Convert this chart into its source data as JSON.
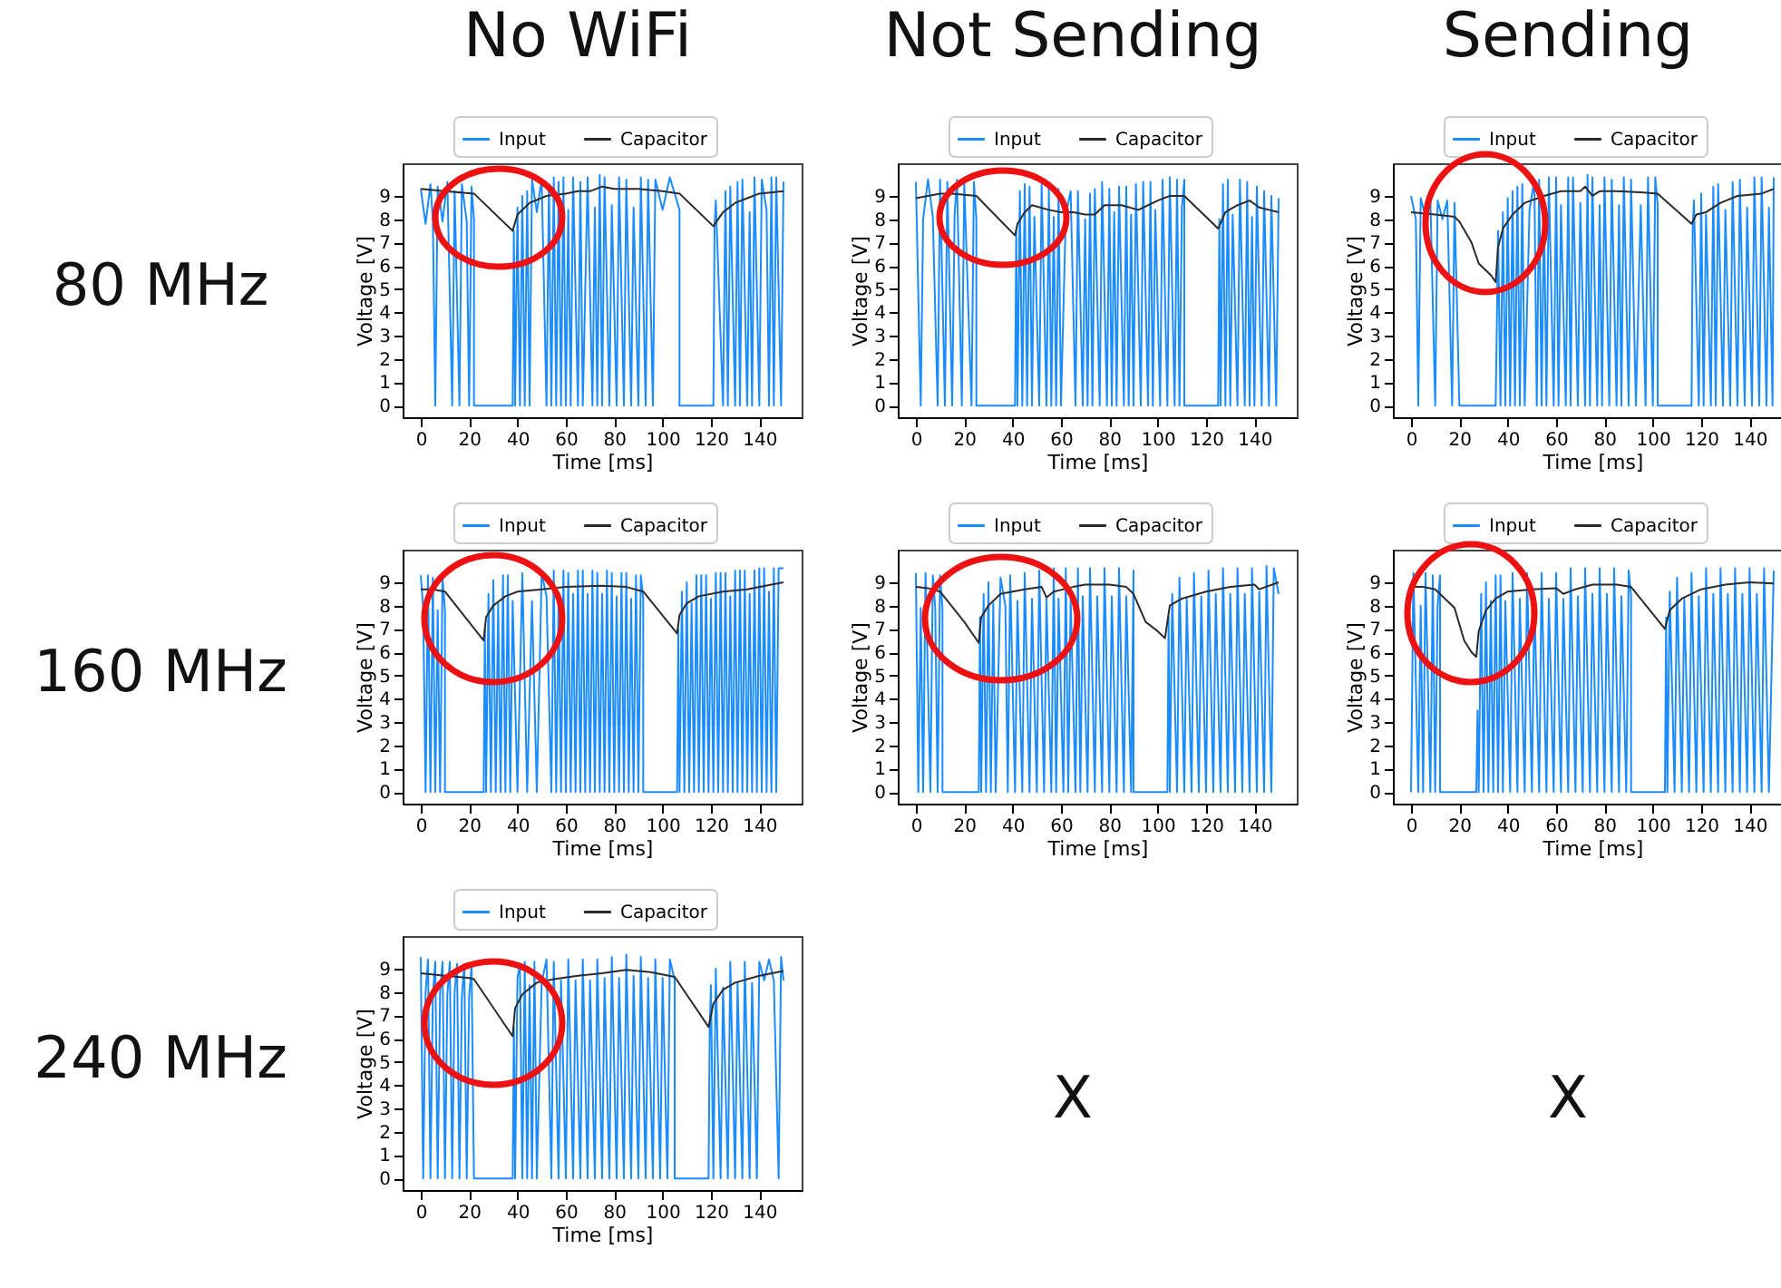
{
  "chart_data": [
    {
      "type": "line",
      "title": "No WiFi",
      "annotations": [
        "80 MHz"
      ],
      "xlabel": "Time [ms]",
      "ylabel": "Voltage [V]",
      "xlim": [
        -7.5,
        157.5
      ],
      "ylim": [
        -0.5,
        10.4
      ],
      "xticks": [
        0,
        20,
        40,
        60,
        80,
        100,
        120,
        140
      ],
      "yticks": [
        0,
        1,
        2,
        3,
        4,
        5,
        6,
        7,
        8,
        9
      ],
      "legend": "top",
      "series": [
        {
          "name": "Input",
          "color": "#1a8cff",
          "x": [
            0,
            2,
            4,
            5,
            6,
            7,
            9,
            11,
            13,
            14,
            16,
            17,
            19,
            20,
            21,
            22,
            22,
            38,
            38.5,
            39,
            40,
            41,
            42,
            43,
            44,
            45,
            46,
            48,
            50,
            52,
            53,
            54,
            55,
            56,
            57,
            58,
            59,
            60,
            61,
            62,
            63,
            65,
            66,
            67,
            69,
            71,
            72,
            73,
            74,
            75,
            76,
            78,
            79,
            81,
            82,
            84,
            85,
            87,
            88,
            90,
            91,
            93,
            94,
            96,
            97,
            100,
            103,
            107,
            107,
            121,
            121.5,
            122,
            125,
            126,
            127,
            128,
            130,
            131,
            132,
            133,
            135,
            136,
            137,
            138,
            140,
            141,
            143,
            144,
            145,
            146,
            147,
            149,
            150
          ],
          "values": [
            9.3,
            7.8,
            9.5,
            8,
            0,
            9.4,
            7.9,
            9.6,
            0,
            9.2,
            0,
            9.5,
            7.9,
            0,
            9.4,
            8,
            0,
            0,
            7.5,
            0,
            8.5,
            0,
            9,
            0,
            9.2,
            0,
            9.7,
            8.3,
            9.7,
            0,
            9.5,
            0,
            9.8,
            0,
            9.6,
            0,
            9.8,
            0,
            8.4,
            0,
            9.8,
            0,
            9.6,
            0,
            9.8,
            0,
            8.5,
            0,
            9.9,
            0,
            9.8,
            0,
            8.6,
            0,
            9.8,
            0,
            9.7,
            0,
            8.5,
            0,
            9.8,
            0,
            9.7,
            0,
            9.7,
            8.4,
            9.8,
            8.4,
            0,
            0,
            7.7,
            8.8,
            0,
            9.2,
            0,
            9.4,
            0,
            9.6,
            0,
            9.7,
            0,
            8.3,
            0,
            9.8,
            0,
            9.7,
            8.4,
            0,
            9.8,
            0,
            9.8,
            0,
            9.6
          ]
        },
        {
          "name": "Capacitor",
          "color": "#2b2b2b",
          "x": [
            0,
            10,
            22,
            38,
            40,
            45,
            52,
            60,
            65,
            70,
            75,
            80,
            90,
            100,
            107,
            121,
            125,
            130,
            135,
            140,
            150
          ],
          "values": [
            9.3,
            9.2,
            9.1,
            7.5,
            8.2,
            8.7,
            9,
            9.1,
            9.2,
            9.2,
            9.4,
            9.3,
            9.3,
            9.2,
            9.1,
            7.7,
            8.3,
            8.7,
            8.9,
            9.1,
            9.2
          ]
        }
      ]
    },
    {
      "type": "line",
      "title": "Not Sending",
      "xlabel": "Time [ms]",
      "ylabel": "Voltage [V]",
      "xlim": [
        -7.5,
        157.5
      ],
      "ylim": [
        -0.5,
        10.4
      ],
      "xticks": [
        0,
        20,
        40,
        60,
        80,
        100,
        120,
        140
      ],
      "yticks": [
        0,
        1,
        2,
        3,
        4,
        5,
        6,
        7,
        8,
        9
      ],
      "legend": "top",
      "series": [
        {
          "name": "Input",
          "color": "#1a8cff",
          "x": [
            0,
            2,
            3,
            5,
            7,
            9,
            10,
            12,
            13,
            15,
            16,
            17,
            19,
            20,
            23,
            24,
            25,
            25,
            41,
            41.5,
            42,
            43,
            44,
            45,
            46,
            47,
            48,
            49,
            51,
            52,
            54,
            55,
            56,
            57,
            58,
            59,
            60,
            62,
            64,
            66,
            67,
            69,
            70,
            71,
            72,
            73,
            74,
            76,
            77,
            79,
            80,
            81,
            82,
            83,
            84,
            86,
            87,
            88,
            89,
            90,
            91,
            93,
            94,
            96,
            97,
            98,
            99,
            101,
            102,
            104,
            105,
            107,
            108,
            109,
            110,
            111,
            111,
            125,
            125.5,
            126,
            127,
            128,
            129,
            130,
            131,
            133,
            134,
            136,
            137,
            138,
            139,
            140,
            141,
            143,
            144,
            146,
            147,
            149,
            150
          ],
          "values": [
            9.6,
            0,
            8,
            9.7,
            8.1,
            0,
            9.7,
            0,
            9.6,
            0,
            8.2,
            9.7,
            0,
            9.6,
            0,
            9.6,
            8,
            0,
            0,
            7.5,
            0,
            9.2,
            0,
            9.5,
            0,
            9.4,
            0,
            8.1,
            0,
            9.5,
            0,
            9.3,
            0,
            8.1,
            0,
            9.3,
            0,
            8.2,
            9.2,
            0,
            9.2,
            0,
            8,
            0,
            9.1,
            0,
            9.3,
            0,
            9.6,
            0,
            9.3,
            0,
            8.3,
            0,
            9.4,
            0,
            9.4,
            0,
            8.2,
            0,
            9.5,
            0,
            9.6,
            0,
            9.6,
            0,
            8.4,
            0,
            9.7,
            0,
            9.8,
            0,
            9.7,
            0,
            8.5,
            9.7,
            0,
            0,
            8,
            0,
            9.5,
            0,
            9.7,
            0,
            8.2,
            0,
            9.7,
            0,
            9.6,
            0,
            8.1,
            0,
            9.4,
            0,
            9.2,
            0,
            9,
            0,
            8.9
          ]
        },
        {
          "name": "Capacitor",
          "color": "#2b2b2b",
          "x": [
            0,
            5,
            10,
            15,
            25,
            41,
            42,
            45,
            48,
            55,
            60,
            65,
            70,
            74,
            78,
            85,
            92,
            100,
            105,
            111,
            125,
            128,
            133,
            138,
            142,
            146,
            150
          ],
          "values": [
            8.9,
            9,
            9.1,
            9.1,
            9,
            7.3,
            7.8,
            8.3,
            8.6,
            8.4,
            8.3,
            8.3,
            8.2,
            8.2,
            8.6,
            8.6,
            8.4,
            8.8,
            9,
            9,
            7.6,
            8.3,
            8.6,
            8.8,
            8.5,
            8.4,
            8.3
          ]
        }
      ]
    },
    {
      "type": "line",
      "title": "Sending",
      "xlabel": "Time [ms]",
      "ylabel": "Voltage [V]",
      "xlim": [
        -7.5,
        157.5
      ],
      "ylim": [
        -0.5,
        10.4
      ],
      "xticks": [
        0,
        20,
        40,
        60,
        80,
        100,
        120,
        140
      ],
      "yticks": [
        0,
        1,
        2,
        3,
        4,
        5,
        6,
        7,
        8,
        9
      ],
      "legend": "top",
      "series": [
        {
          "name": "Input",
          "color": "#1a8cff",
          "x": [
            0,
            2,
            3,
            4,
            6,
            8,
            10,
            11,
            13,
            15,
            17,
            18,
            20,
            35,
            35.5,
            36,
            37,
            38,
            39,
            40,
            41,
            42,
            43,
            44,
            45,
            46,
            47,
            49,
            51,
            52,
            53,
            54,
            55,
            56,
            57,
            59,
            60,
            61,
            62,
            64,
            65,
            66,
            67,
            69,
            70,
            72,
            73,
            74,
            75,
            77,
            78,
            79,
            80,
            82,
            83,
            85,
            86,
            87,
            88,
            90,
            91,
            93,
            95,
            97,
            98,
            100,
            101,
            102,
            102,
            116,
            116.5,
            117,
            119,
            120,
            121,
            122,
            124,
            125,
            126,
            127,
            129,
            130,
            132,
            133,
            135,
            136,
            138,
            139,
            141,
            142,
            144,
            145,
            147,
            148,
            149.5,
            150
          ],
          "values": [
            9,
            8,
            0,
            8.9,
            8.1,
            8.9,
            0,
            8.8,
            8,
            8.8,
            0,
            8.7,
            0,
            0,
            3.5,
            7.5,
            0,
            8.3,
            0,
            8.9,
            0,
            9.2,
            0,
            9.4,
            0,
            9.5,
            0,
            8.4,
            9.7,
            0,
            9.7,
            0,
            8.5,
            0,
            9.8,
            0,
            9.8,
            0,
            8.6,
            0,
            9.8,
            0,
            9.8,
            0,
            8.7,
            0,
            9.9,
            0,
            9.8,
            0,
            8.6,
            0,
            9.8,
            0,
            9.7,
            0,
            8.6,
            0,
            9.8,
            0,
            9.7,
            0,
            8.6,
            0,
            9.8,
            0,
            9.8,
            8.6,
            0,
            0,
            7.6,
            8.8,
            0,
            9.1,
            0,
            8.2,
            0,
            9.4,
            0,
            9.5,
            0,
            8.4,
            0,
            9.6,
            0,
            9.7,
            0,
            8.5,
            0,
            9.8,
            0,
            9.8,
            0,
            8.5,
            0,
            9.8
          ]
        },
        {
          "name": "Capacitor",
          "color": "#2b2b2b",
          "x": [
            0,
            10,
            18,
            20,
            25,
            28,
            33,
            35,
            36,
            38,
            42,
            47,
            55,
            62,
            70,
            72,
            75,
            78,
            85,
            95,
            102,
            116,
            118,
            122,
            128,
            135,
            145,
            150
          ],
          "values": [
            8.3,
            8.2,
            8.1,
            7.9,
            7,
            6.1,
            5.6,
            5.3,
            6.8,
            7.6,
            8.2,
            8.7,
            9,
            9.2,
            9.2,
            9.4,
            9,
            9.2,
            9.2,
            9.15,
            9.1,
            7.8,
            8.2,
            8.3,
            8.7,
            9,
            9.1,
            9.3
          ]
        }
      ]
    },
    {
      "type": "line",
      "annotations": [
        "160 MHz"
      ],
      "xlabel": "Time [ms]",
      "ylabel": "Voltage [V]",
      "xlim": [
        -7.5,
        157.5
      ],
      "ylim": [
        -0.5,
        10.4
      ],
      "xticks": [
        0,
        20,
        40,
        60,
        80,
        100,
        120,
        140
      ],
      "yticks": [
        0,
        1,
        2,
        3,
        4,
        5,
        6,
        7,
        8,
        9
      ],
      "legend": "top",
      "series": [
        {
          "name": "Input",
          "color": "#1a8cff",
          "x": [
            0,
            1,
            2,
            3,
            4,
            5,
            6,
            7,
            8,
            9,
            10,
            10,
            26,
            26.5,
            27,
            28,
            29,
            30,
            31,
            32,
            33,
            34,
            35,
            36,
            37,
            38,
            40,
            42,
            44,
            46,
            48,
            50,
            52,
            54,
            55,
            56,
            57,
            58,
            59,
            60,
            61,
            62,
            63,
            64,
            65,
            66,
            67,
            68,
            69,
            70,
            71,
            72,
            73,
            74,
            75,
            76,
            77,
            78,
            79,
            80,
            81,
            82,
            83,
            84,
            85,
            86,
            87,
            88,
            89,
            90,
            91,
            92,
            92,
            106,
            106.5,
            107,
            108,
            109,
            110,
            111,
            112,
            113,
            114,
            115,
            116,
            117,
            118,
            119,
            120,
            121,
            122,
            123,
            124,
            125,
            126,
            127,
            128,
            129,
            130,
            131,
            132,
            133,
            134,
            135,
            136,
            137,
            138,
            139,
            140,
            141,
            142,
            143,
            144,
            145,
            146,
            147,
            148,
            150
          ],
          "values": [
            9.3,
            7.9,
            0,
            9.3,
            0,
            9.2,
            0,
            7.8,
            0,
            9.2,
            7.8,
            0,
            0,
            7,
            0,
            8.5,
            0,
            9.1,
            0,
            8.1,
            0,
            9.3,
            0,
            9.3,
            0,
            8.2,
            0,
            9.4,
            0,
            8.2,
            0,
            9.4,
            8.4,
            0,
            9.5,
            0,
            8.5,
            0,
            9.5,
            0,
            9.4,
            0,
            8.5,
            0,
            9.5,
            0,
            9.5,
            0,
            8.5,
            0,
            9.5,
            0,
            9.4,
            0,
            8.5,
            0,
            9.5,
            0,
            9.4,
            0,
            8.4,
            0,
            9.4,
            0,
            9.4,
            0,
            8.3,
            0,
            9.3,
            0,
            9.3,
            8.3,
            0,
            0,
            7,
            0,
            8.6,
            0,
            9,
            0,
            8.1,
            0,
            9.3,
            0,
            9.3,
            0,
            9.3,
            0,
            8.3,
            0,
            9.4,
            0,
            9.4,
            0,
            9.4,
            0,
            8.4,
            0,
            9.5,
            0,
            9.5,
            0,
            9.5,
            0,
            8.5,
            0,
            9.5,
            0,
            9.6,
            0,
            9.6,
            0,
            8.6,
            0,
            9.6,
            0,
            9.6,
            9.6
          ]
        },
        {
          "name": "Capacitor",
          "color": "#2b2b2b",
          "x": [
            0,
            5,
            10,
            26,
            27,
            30,
            35,
            40,
            50,
            60,
            75,
            85,
            92,
            106,
            107,
            110,
            115,
            125,
            135,
            145,
            150
          ],
          "values": [
            8.7,
            8.7,
            8.6,
            6.5,
            7.5,
            8,
            8.4,
            8.6,
            8.7,
            8.8,
            8.85,
            8.8,
            8.6,
            6.8,
            7.6,
            8.1,
            8.4,
            8.6,
            8.7,
            8.9,
            9
          ]
        }
      ]
    },
    {
      "type": "line",
      "xlabel": "Time [ms]",
      "ylabel": "Voltage [V]",
      "xlim": [
        -7.5,
        157.5
      ],
      "ylim": [
        -0.5,
        10.4
      ],
      "xticks": [
        0,
        20,
        40,
        60,
        80,
        100,
        120,
        140
      ],
      "yticks": [
        0,
        1,
        2,
        3,
        4,
        5,
        6,
        7,
        8,
        9
      ],
      "legend": "top",
      "series": [
        {
          "name": "Input",
          "color": "#1a8cff",
          "x": [
            0,
            1,
            2,
            3,
            4,
            6,
            7,
            8,
            9,
            10,
            11,
            11,
            26,
            26.5,
            27,
            28,
            29,
            30,
            31,
            32,
            33,
            35,
            37,
            38,
            39,
            41,
            42,
            44,
            45,
            47,
            48,
            50,
            51,
            53,
            54,
            56,
            57,
            58,
            59,
            61,
            62,
            63,
            64,
            66,
            67,
            68,
            69,
            71,
            72,
            74,
            75,
            77,
            78,
            80,
            81,
            83,
            84,
            86,
            87,
            89,
            90,
            90,
            104,
            104.5,
            105,
            106,
            108,
            109,
            111,
            112,
            114,
            115,
            117,
            118,
            120,
            121,
            123,
            124,
            126,
            127,
            129,
            130,
            132,
            133,
            135,
            136,
            138,
            139,
            141,
            142,
            144,
            145,
            147,
            148,
            150
          ],
          "values": [
            9.4,
            0,
            7.9,
            0,
            9.4,
            0,
            9.3,
            7.9,
            0,
            9.3,
            7.9,
            0,
            0,
            7.5,
            0,
            8.5,
            0,
            9,
            0,
            8.1,
            0,
            9.2,
            8,
            0,
            9.3,
            0,
            8.2,
            0,
            9.4,
            0,
            8.3,
            0,
            9.5,
            0,
            8.3,
            0,
            9.6,
            0,
            8.3,
            0,
            9.6,
            0,
            8.3,
            0,
            9.6,
            0,
            8.4,
            0,
            9.6,
            0,
            8.4,
            0,
            9.6,
            0,
            8.4,
            0,
            9.6,
            0,
            8.4,
            0,
            9.5,
            0,
            0,
            7.5,
            0,
            8.5,
            0,
            9.2,
            0,
            8.3,
            0,
            9.4,
            0,
            8.4,
            0,
            9.5,
            0,
            8.5,
            0,
            9.6,
            0,
            8.5,
            0,
            9.6,
            0,
            8.5,
            0,
            9.6,
            0,
            8.6,
            0,
            9.7,
            0,
            9.6,
            8.5
          ]
        },
        {
          "name": "Capacitor",
          "color": "#2b2b2b",
          "x": [
            0,
            5,
            10,
            20,
            26,
            27,
            30,
            35,
            45,
            52,
            54,
            57,
            65,
            70,
            80,
            87,
            90,
            95,
            100,
            103,
            105,
            110,
            120,
            130,
            140,
            142,
            150
          ],
          "values": [
            8.8,
            8.75,
            8.6,
            7.3,
            6.4,
            7.5,
            8,
            8.5,
            8.7,
            8.8,
            8.35,
            8.6,
            8.8,
            8.9,
            8.9,
            8.8,
            8.5,
            7.3,
            6.9,
            6.6,
            8,
            8.3,
            8.6,
            8.8,
            8.9,
            8.7,
            9
          ]
        }
      ]
    },
    {
      "type": "line",
      "xlabel": "Time [ms]",
      "ylabel": "Voltage [V]",
      "xlim": [
        -7.5,
        157.5
      ],
      "ylim": [
        -0.5,
        10.4
      ],
      "xticks": [
        0,
        20,
        40,
        60,
        80,
        100,
        120,
        140
      ],
      "yticks": [
        0,
        1,
        2,
        3,
        4,
        5,
        6,
        7,
        8,
        9
      ],
      "legend": "top",
      "series": [
        {
          "name": "Input",
          "color": "#1a8cff",
          "x": [
            0,
            1,
            3,
            4,
            5,
            6,
            8,
            9,
            10,
            11,
            12,
            12,
            27,
            27.5,
            28,
            29,
            30,
            31,
            32,
            33,
            34,
            35,
            36,
            37,
            38,
            39,
            41,
            42,
            44,
            45,
            47,
            48,
            50,
            51,
            53,
            54,
            56,
            57,
            59,
            60,
            62,
            63,
            65,
            66,
            68,
            69,
            71,
            72,
            74,
            75,
            77,
            78,
            80,
            81,
            83,
            84,
            86,
            87,
            89,
            90,
            91,
            91,
            105,
            105.5,
            106,
            107,
            109,
            110,
            112,
            113,
            115,
            116,
            118,
            119,
            121,
            122,
            124,
            125,
            127,
            128,
            130,
            131,
            133,
            134,
            136,
            137,
            139,
            140,
            142,
            143,
            145,
            146,
            148,
            150
          ],
          "values": [
            0,
            9.4,
            0,
            8,
            0,
            9.4,
            0,
            9.3,
            0,
            8,
            9.3,
            0,
            0,
            3.5,
            0,
            8.5,
            0,
            9,
            0,
            8.2,
            0,
            9.3,
            0,
            9.3,
            0,
            8.2,
            0,
            9.4,
            0,
            8.3,
            0,
            9.4,
            0,
            8.3,
            0,
            9.4,
            0,
            8.3,
            0,
            9.4,
            0,
            8.3,
            0,
            9.6,
            0,
            8.4,
            0,
            9.6,
            0,
            8.5,
            0,
            9.6,
            0,
            8.5,
            0,
            9.6,
            0,
            8.4,
            0,
            9.5,
            8.4,
            0,
            0,
            7.5,
            0,
            8.6,
            0,
            9.2,
            0,
            8.3,
            0,
            9.4,
            0,
            8.4,
            0,
            9.6,
            0,
            8.5,
            0,
            9.6,
            0,
            8.5,
            0,
            9.6,
            0,
            8.5,
            0,
            9.6,
            0,
            8.5,
            0,
            9.6,
            0,
            9.5
          ]
        },
        {
          "name": "Capacitor",
          "color": "#2b2b2b",
          "x": [
            0,
            5,
            10,
            15,
            18,
            22,
            25,
            27,
            28,
            31,
            35,
            40,
            50,
            60,
            63,
            68,
            75,
            85,
            91,
            105,
            107,
            112,
            120,
            130,
            140,
            150
          ],
          "values": [
            8.8,
            8.8,
            8.7,
            8.2,
            7.9,
            6.5,
            6,
            5.8,
            6.9,
            7.8,
            8.3,
            8.6,
            8.7,
            8.75,
            8.5,
            8.7,
            8.9,
            8.9,
            8.8,
            7,
            7.8,
            8.3,
            8.7,
            8.9,
            9,
            8.95
          ]
        }
      ]
    },
    {
      "type": "line",
      "annotations": [
        "240 MHz"
      ],
      "xlabel": "Time [ms]",
      "ylabel": "Voltage [V]",
      "xlim": [
        -7.5,
        157.5
      ],
      "ylim": [
        -0.5,
        10.4
      ],
      "xticks": [
        0,
        20,
        40,
        60,
        80,
        100,
        120,
        140
      ],
      "yticks": [
        0,
        1,
        2,
        3,
        4,
        5,
        6,
        7,
        8,
        9
      ],
      "legend": "top",
      "series": [
        {
          "name": "Input",
          "color": "#1a8cff",
          "x": [
            0,
            1,
            2,
            3,
            4,
            5,
            6,
            7,
            8,
            9,
            10,
            11,
            12,
            13,
            14,
            15,
            16,
            17,
            18,
            19,
            20,
            21,
            22,
            38,
            38.5,
            39,
            40,
            41,
            42,
            43,
            44,
            45,
            46,
            47,
            48,
            50,
            52,
            54,
            55,
            57,
            58,
            60,
            61,
            63,
            64,
            66,
            67,
            69,
            70,
            72,
            73,
            75,
            76,
            78,
            79,
            81,
            82,
            84,
            85,
            87,
            88,
            90,
            91,
            93,
            94,
            96,
            97,
            99,
            100,
            102,
            103,
            105,
            105,
            119,
            119.5,
            120,
            121,
            122,
            124,
            125,
            127,
            128,
            130,
            131,
            133,
            134,
            136,
            137,
            139,
            140,
            142,
            144,
            146,
            148,
            149,
            150
          ],
          "values": [
            9.5,
            0,
            8,
            9.4,
            0,
            7.9,
            9.3,
            0,
            8,
            9.3,
            0,
            7.9,
            9.3,
            0,
            8,
            9.2,
            0,
            7.8,
            9.2,
            0,
            7.8,
            9.1,
            0,
            0,
            6.5,
            0,
            8.6,
            9.2,
            0,
            9.3,
            0,
            8.3,
            0,
            9.3,
            0,
            8.4,
            9.4,
            0,
            9.3,
            0,
            8.5,
            0,
            9.4,
            0,
            8.5,
            0,
            9.4,
            0,
            8.5,
            0,
            9.4,
            0,
            8.6,
            0,
            9.5,
            0,
            8.6,
            0,
            9.6,
            0,
            8.7,
            0,
            9.5,
            0,
            8.6,
            0,
            9.4,
            0,
            8.6,
            0,
            9.4,
            8.5,
            0,
            0,
            6.5,
            8.3,
            0,
            9,
            0,
            8.2,
            0,
            9.3,
            0,
            8.4,
            0,
            9.3,
            0,
            8.4,
            0,
            9.3,
            8.5,
            9.4,
            8.5,
            0,
            9.5,
            8.5
          ]
        },
        {
          "name": "Capacitor",
          "color": "#2b2b2b",
          "x": [
            0,
            10,
            20,
            22,
            38,
            39,
            42,
            48,
            55,
            65,
            75,
            85,
            95,
            105,
            119,
            121,
            125,
            130,
            140,
            150
          ],
          "values": [
            8.8,
            8.7,
            8.6,
            8.55,
            6.1,
            7.3,
            7.9,
            8.4,
            8.55,
            8.7,
            8.8,
            8.95,
            8.85,
            8.65,
            6.5,
            7.5,
            8.1,
            8.4,
            8.7,
            8.9
          ]
        }
      ]
    },
    {
      "type": "other",
      "annotations": [
        "X"
      ]
    },
    {
      "type": "other",
      "annotations": [
        "X"
      ]
    }
  ]
}
